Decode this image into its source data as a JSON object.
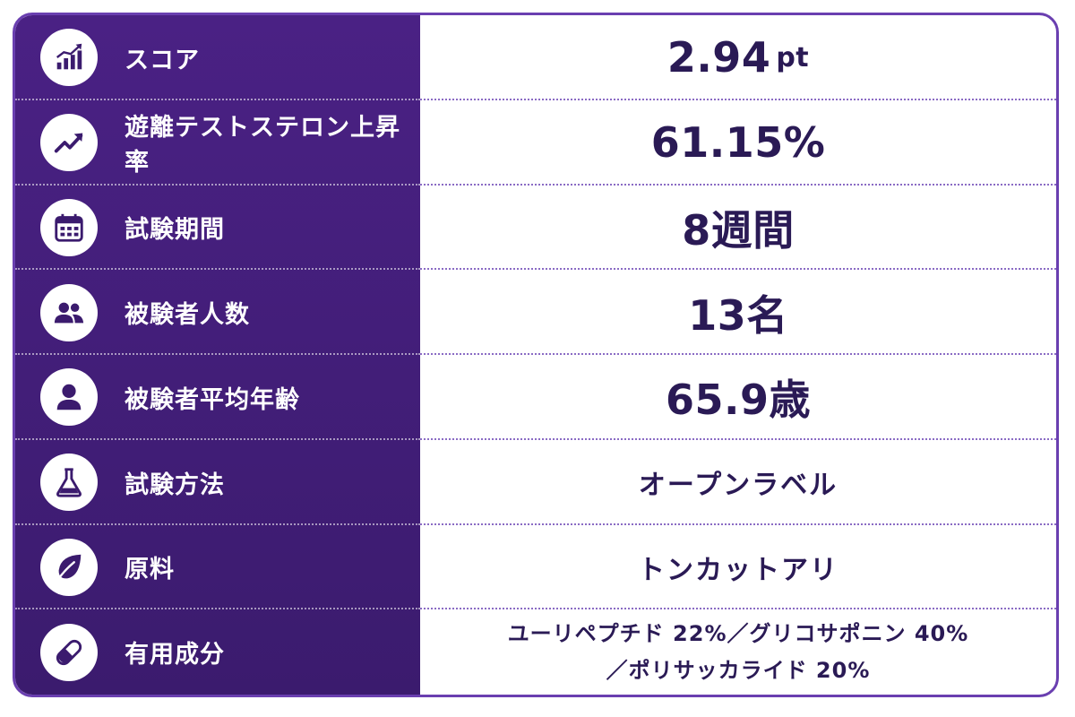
{
  "rows": [
    {
      "icon": "bar-chart-trend-icon",
      "label": "スコア",
      "value": "2.94",
      "unit": "pt"
    },
    {
      "icon": "trending-up-icon",
      "label": "遊離テストステロン上昇率",
      "value": "61.15%"
    },
    {
      "icon": "calendar-icon",
      "label": "試験期間",
      "value": "8週間"
    },
    {
      "icon": "people-group-icon",
      "label": "被験者人数",
      "value": "13名"
    },
    {
      "icon": "person-icon",
      "label": "被験者平均年齢",
      "value": "65.9歳"
    },
    {
      "icon": "flask-icon",
      "label": "試験方法",
      "value": "オープンラベル"
    },
    {
      "icon": "leaf-icon",
      "label": "原料",
      "value": "トンカットアリ"
    },
    {
      "icon": "capsule-icon",
      "label": "有用成分",
      "value_line1": "ユーリペプチド 22%／グリコサポニン 40%",
      "value_line2": "／ポリサッカライド 20%"
    }
  ],
  "colors": {
    "panel": "#3f1c75",
    "value_text": "#2a1a55",
    "border": "#6a3fb0"
  }
}
